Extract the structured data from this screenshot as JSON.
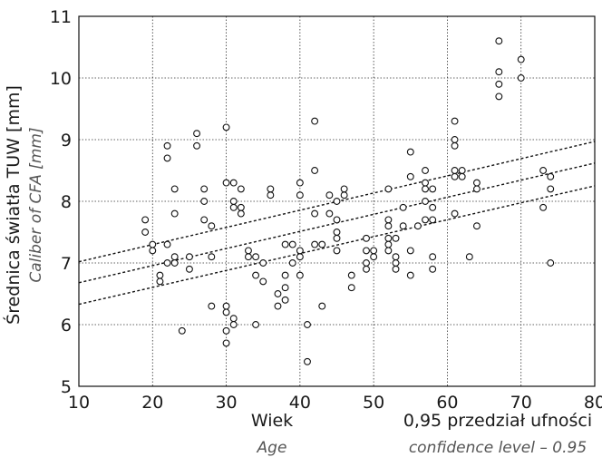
{
  "chart_data": {
    "type": "scatter",
    "xlabel": "Wiek",
    "xlabel_sub": "Age",
    "ylabel": "Średnica światła TUW [mm]",
    "ylabel_sub": "Caliber of CFA [mm]",
    "ci_label": "0,95 przedział ufności",
    "ci_label_sub": "confidence level – 0.95",
    "xlim": [
      10,
      80
    ],
    "ylim": [
      5,
      11
    ],
    "xticks": [
      "10",
      "20",
      "30",
      "40",
      "50",
      "60",
      "70",
      "80"
    ],
    "yticks": [
      "5",
      "6",
      "7",
      "8",
      "9",
      "10",
      "11"
    ],
    "grid": true,
    "regression": {
      "x": [
        10,
        80
      ],
      "y": [
        6.68,
        8.62
      ]
    },
    "ci_upper": {
      "x": [
        10,
        80
      ],
      "y": [
        7.02,
        8.97
      ]
    },
    "ci_lower": {
      "x": [
        10,
        80
      ],
      "y": [
        6.33,
        8.25
      ]
    },
    "points": [
      [
        19,
        7.7
      ],
      [
        19,
        7.5
      ],
      [
        20,
        7.3
      ],
      [
        20,
        7.2
      ],
      [
        21,
        6.8
      ],
      [
        21,
        6.7
      ],
      [
        22,
        8.9
      ],
      [
        22,
        8.7
      ],
      [
        22,
        7.3
      ],
      [
        22,
        7.0
      ],
      [
        23,
        8.2
      ],
      [
        23,
        7.8
      ],
      [
        23,
        7.1
      ],
      [
        23,
        7.0
      ],
      [
        24,
        5.9
      ],
      [
        25,
        7.1
      ],
      [
        25,
        6.9
      ],
      [
        26,
        9.1
      ],
      [
        26,
        8.9
      ],
      [
        27,
        8.2
      ],
      [
        27,
        8.0
      ],
      [
        27,
        7.7
      ],
      [
        28,
        7.6
      ],
      [
        28,
        7.1
      ],
      [
        28,
        6.3
      ],
      [
        30,
        9.2
      ],
      [
        30,
        8.3
      ],
      [
        30,
        6.3
      ],
      [
        30,
        6.2
      ],
      [
        30,
        5.9
      ],
      [
        30,
        5.7
      ],
      [
        31,
        8.3
      ],
      [
        31,
        8.0
      ],
      [
        31,
        7.9
      ],
      [
        31,
        6.1
      ],
      [
        31,
        6.0
      ],
      [
        32,
        8.2
      ],
      [
        32,
        7.9
      ],
      [
        32,
        7.8
      ],
      [
        33,
        7.2
      ],
      [
        33,
        7.1
      ],
      [
        34,
        7.1
      ],
      [
        34,
        6.8
      ],
      [
        34,
        6.0
      ],
      [
        35,
        7.0
      ],
      [
        35,
        6.7
      ],
      [
        36,
        8.2
      ],
      [
        36,
        8.1
      ],
      [
        37,
        6.5
      ],
      [
        37,
        6.3
      ],
      [
        38,
        7.3
      ],
      [
        38,
        6.8
      ],
      [
        38,
        6.6
      ],
      [
        38,
        6.4
      ],
      [
        39,
        7.3
      ],
      [
        39,
        7.0
      ],
      [
        40,
        8.3
      ],
      [
        40,
        8.1
      ],
      [
        40,
        7.2
      ],
      [
        40,
        7.1
      ],
      [
        40,
        6.8
      ],
      [
        41,
        6.0
      ],
      [
        41,
        5.4
      ],
      [
        42,
        9.3
      ],
      [
        42,
        8.5
      ],
      [
        42,
        7.8
      ],
      [
        42,
        7.3
      ],
      [
        43,
        7.3
      ],
      [
        43,
        6.3
      ],
      [
        44,
        8.1
      ],
      [
        44,
        7.8
      ],
      [
        45,
        8.0
      ],
      [
        45,
        7.7
      ],
      [
        45,
        7.5
      ],
      [
        45,
        7.4
      ],
      [
        45,
        7.2
      ],
      [
        46,
        8.2
      ],
      [
        46,
        8.1
      ],
      [
        47,
        6.8
      ],
      [
        47,
        6.6
      ],
      [
        49,
        7.4
      ],
      [
        49,
        7.2
      ],
      [
        49,
        7.0
      ],
      [
        49,
        6.9
      ],
      [
        50,
        7.2
      ],
      [
        50,
        7.1
      ],
      [
        52,
        8.2
      ],
      [
        52,
        7.7
      ],
      [
        52,
        7.6
      ],
      [
        52,
        7.4
      ],
      [
        52,
        7.3
      ],
      [
        52,
        7.2
      ],
      [
        53,
        7.4
      ],
      [
        53,
        7.1
      ],
      [
        53,
        7.0
      ],
      [
        53,
        6.9
      ],
      [
        54,
        7.9
      ],
      [
        54,
        7.6
      ],
      [
        55,
        8.8
      ],
      [
        55,
        8.4
      ],
      [
        55,
        7.2
      ],
      [
        55,
        6.8
      ],
      [
        56,
        7.6
      ],
      [
        57,
        8.5
      ],
      [
        57,
        8.3
      ],
      [
        57,
        8.2
      ],
      [
        57,
        8.0
      ],
      [
        57,
        7.7
      ],
      [
        58,
        8.2
      ],
      [
        58,
        7.9
      ],
      [
        58,
        7.7
      ],
      [
        58,
        7.1
      ],
      [
        58,
        6.9
      ],
      [
        61,
        9.3
      ],
      [
        61,
        9.0
      ],
      [
        61,
        8.9
      ],
      [
        61,
        8.5
      ],
      [
        61,
        8.4
      ],
      [
        61,
        7.8
      ],
      [
        62,
        8.5
      ],
      [
        62,
        8.4
      ],
      [
        63,
        7.1
      ],
      [
        64,
        8.3
      ],
      [
        64,
        8.2
      ],
      [
        64,
        7.6
      ],
      [
        67,
        10.6
      ],
      [
        67,
        10.1
      ],
      [
        67,
        9.9
      ],
      [
        67,
        9.7
      ],
      [
        70,
        10.3
      ],
      [
        70,
        10.0
      ],
      [
        73,
        8.5
      ],
      [
        73,
        7.9
      ],
      [
        74,
        8.4
      ],
      [
        74,
        8.2
      ],
      [
        74,
        7.0
      ]
    ]
  }
}
